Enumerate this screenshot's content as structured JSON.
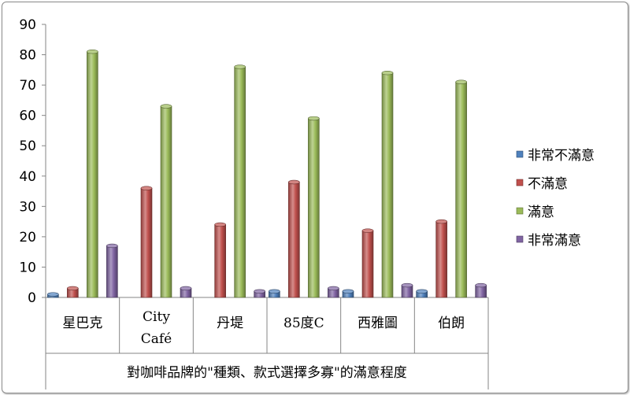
{
  "chart_data": {
    "type": "bar",
    "xlabel": "對咖啡品牌的\"種類、款式選擇多寡\"的滿意程度",
    "categories": [
      [
        "星巴克"
      ],
      [
        "City",
        "Café"
      ],
      [
        "丹堤"
      ],
      [
        "85度C"
      ],
      [
        "西雅圖"
      ],
      [
        "伯朗"
      ]
    ],
    "ylim": [
      0,
      90
    ],
    "yticks": [
      0,
      10,
      20,
      30,
      40,
      50,
      60,
      70,
      80,
      90
    ],
    "grid": false,
    "legend_position": "right",
    "series": [
      {
        "name": "非常不滿意",
        "color": "#4f81bd",
        "values": [
          1,
          0,
          0,
          2,
          2,
          2
        ]
      },
      {
        "name": "不滿意",
        "color": "#c0504d",
        "values": [
          3,
          36,
          24,
          38,
          22,
          25
        ]
      },
      {
        "name": "滿意",
        "color": "#9bbb59",
        "values": [
          81,
          63,
          76,
          59,
          74,
          71
        ]
      },
      {
        "name": "非常滿意",
        "color": "#8064a2",
        "values": [
          17,
          3,
          2,
          3,
          4,
          4
        ]
      }
    ]
  }
}
